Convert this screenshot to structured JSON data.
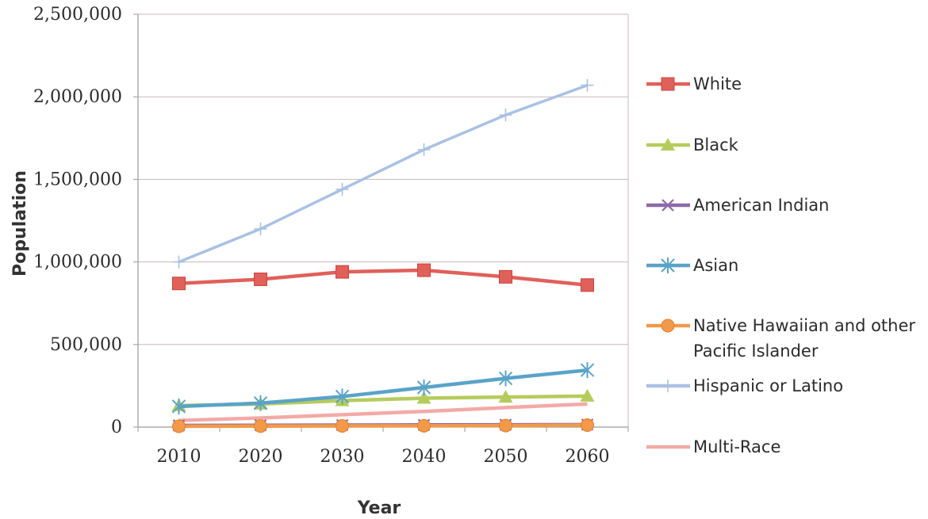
{
  "chart_data": {
    "type": "line",
    "xlabel": "Year",
    "ylabel": "Population",
    "categories": [
      "2010",
      "2020",
      "2030",
      "2040",
      "2050",
      "2060"
    ],
    "ylim": [
      0,
      2500000
    ],
    "yticks": [
      0,
      500000,
      1000000,
      1500000,
      2000000,
      2500000
    ],
    "ytick_labels": [
      "0",
      "500,000",
      "1,000,000",
      "1,500,000",
      "2,000,000",
      "2,500,000"
    ],
    "grid": "horizontal",
    "legend_position": "right",
    "series": [
      {
        "name": "White",
        "color": "#e0605a",
        "marker": "square",
        "values": [
          870000,
          895000,
          940000,
          950000,
          910000,
          860000
        ]
      },
      {
        "name": "Black",
        "color": "#b5cc5c",
        "marker": "triangle",
        "values": [
          130000,
          140000,
          160000,
          175000,
          182000,
          188000
        ]
      },
      {
        "name": "American Indian",
        "color": "#8e6aa8",
        "marker": "x",
        "values": [
          10000,
          11000,
          12000,
          13000,
          14000,
          15000
        ]
      },
      {
        "name": "Asian",
        "color": "#5aa3c8",
        "marker": "star",
        "values": [
          125000,
          145000,
          185000,
          240000,
          295000,
          345000
        ]
      },
      {
        "name": "Native Hawaiian and other Pacific Islander",
        "legend_lines": [
          "Native Hawaiian and other",
          "Pacific Islander"
        ],
        "color": "#f29a4a",
        "marker": "circle",
        "values": [
          5000,
          6000,
          7000,
          8000,
          9000,
          12000
        ]
      },
      {
        "name": "Hispanic or Latino",
        "color": "#a9c1e3",
        "marker": "plus",
        "values": [
          1000000,
          1200000,
          1440000,
          1680000,
          1890000,
          2070000
        ]
      },
      {
        "name": "Multi-Race",
        "color": "#f2aaa6",
        "marker": "none",
        "values": [
          40000,
          55000,
          75000,
          95000,
          118000,
          140000
        ]
      }
    ]
  }
}
